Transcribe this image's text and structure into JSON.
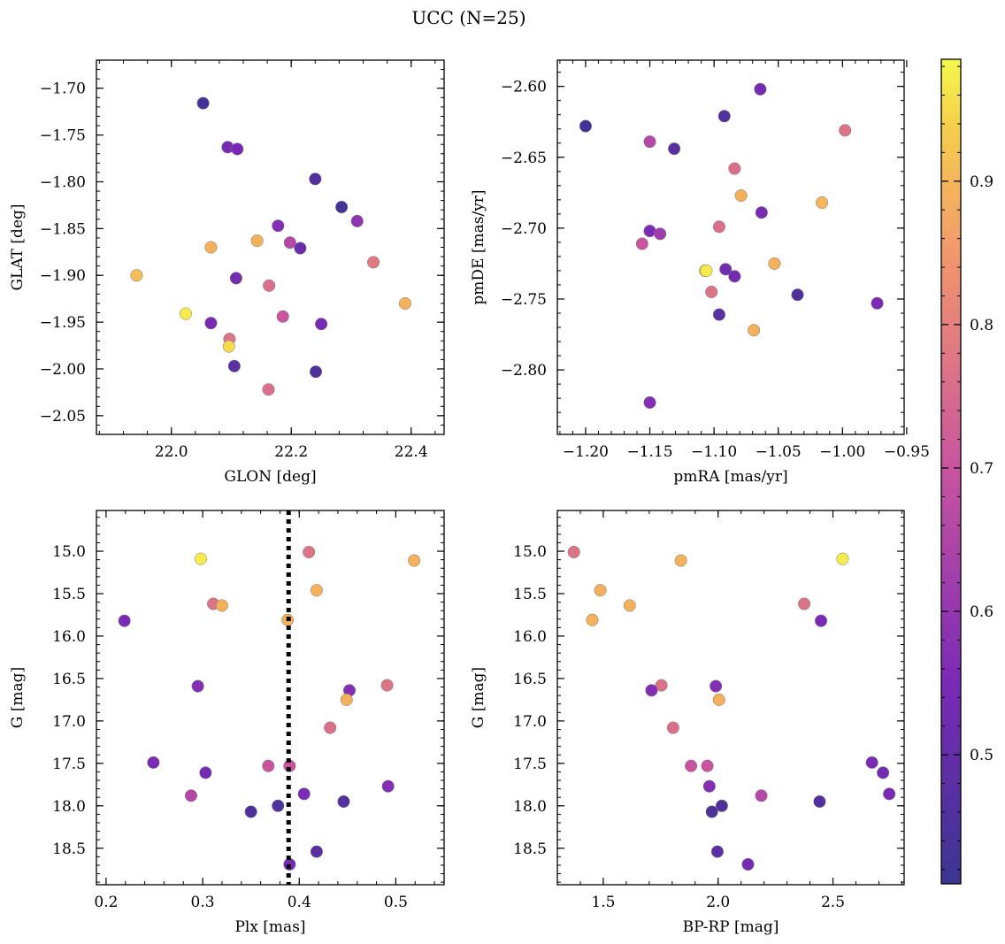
{
  "figure": {
    "title": "UCC (N=25)"
  },
  "colorbar": {
    "min": 0.41,
    "max": 0.985,
    "ticks": [
      0.5,
      0.6,
      0.7,
      0.8,
      0.9
    ],
    "tick_labels": [
      "0.5",
      "0.6",
      "0.7",
      "0.8",
      "0.9"
    ],
    "colormap": "plasma (truncated)"
  },
  "chart_data": [
    {
      "type": "scatter",
      "xlabel": "GLON [deg]",
      "ylabel": "GLAT [deg]",
      "xlim": [
        21.875,
        22.455
      ],
      "ylim": [
        -2.07,
        -1.67
      ],
      "yinvert": false,
      "xticks": [
        22.0,
        22.2,
        22.4
      ],
      "xtick_labels": [
        "22.0",
        "22.2",
        "22.4"
      ],
      "yticks": [
        -1.7,
        -1.75,
        -1.8,
        -1.85,
        -1.9,
        -1.95,
        -2.0,
        -2.05
      ],
      "ytick_labels": [
        "−1.70",
        "−1.75",
        "−1.80",
        "−1.85",
        "−1.90",
        "−1.95",
        "−2.00",
        "−2.05"
      ],
      "points": [
        {
          "x": 22.053,
          "y": -1.716,
          "c": 0.43
        },
        {
          "x": 22.094,
          "y": -1.763,
          "c": 0.54
        },
        {
          "x": 22.11,
          "y": -1.765,
          "c": 0.55
        },
        {
          "x": 22.24,
          "y": -1.797,
          "c": 0.46
        },
        {
          "x": 22.284,
          "y": -1.827,
          "c": 0.42
        },
        {
          "x": 22.178,
          "y": -1.847,
          "c": 0.57
        },
        {
          "x": 22.31,
          "y": -1.842,
          "c": 0.59
        },
        {
          "x": 22.143,
          "y": -1.863,
          "c": 0.89
        },
        {
          "x": 22.198,
          "y": -1.865,
          "c": 0.66
        },
        {
          "x": 22.215,
          "y": -1.871,
          "c": 0.51
        },
        {
          "x": 22.066,
          "y": -1.87,
          "c": 0.89
        },
        {
          "x": 22.337,
          "y": -1.886,
          "c": 0.78
        },
        {
          "x": 21.942,
          "y": -1.9,
          "c": 0.91
        },
        {
          "x": 22.108,
          "y": -1.903,
          "c": 0.53
        },
        {
          "x": 22.163,
          "y": -1.911,
          "c": 0.76
        },
        {
          "x": 22.39,
          "y": -1.93,
          "c": 0.89
        },
        {
          "x": 22.024,
          "y": -1.941,
          "c": 0.97
        },
        {
          "x": 22.186,
          "y": -1.944,
          "c": 0.7
        },
        {
          "x": 22.066,
          "y": -1.951,
          "c": 0.55
        },
        {
          "x": 22.25,
          "y": -1.952,
          "c": 0.54
        },
        {
          "x": 22.097,
          "y": -1.968,
          "c": 0.77
        },
        {
          "x": 22.096,
          "y": -1.976,
          "c": 0.95
        },
        {
          "x": 22.105,
          "y": -1.997,
          "c": 0.48
        },
        {
          "x": 22.241,
          "y": -2.003,
          "c": 0.45
        },
        {
          "x": 22.162,
          "y": -2.022,
          "c": 0.76
        }
      ]
    },
    {
      "type": "scatter",
      "xlabel": "pmRA [mas/yr]",
      "ylabel": "pmDE [mas/yr]",
      "xlim": [
        -1.222,
        -0.952
      ],
      "ylim": [
        -2.8455,
        -2.5815
      ],
      "yinvert": false,
      "xticks": [
        -1.2,
        -1.15,
        -1.1,
        -1.05,
        -1.0,
        -0.95
      ],
      "xtick_labels": [
        "−1.20",
        "−1.15",
        "−1.10",
        "−1.05",
        "−1.00",
        "−0.95"
      ],
      "yticks": [
        -2.6,
        -2.65,
        -2.7,
        -2.75,
        -2.8
      ],
      "ytick_labels": [
        "−2.60",
        "−2.65",
        "−2.70",
        "−2.75",
        "−2.80"
      ],
      "points": [
        {
          "x": -1.064,
          "y": -2.602,
          "c": 0.54
        },
        {
          "x": -1.092,
          "y": -2.621,
          "c": 0.46
        },
        {
          "x": -1.2,
          "y": -2.628,
          "c": 0.43
        },
        {
          "x": -0.998,
          "y": -2.631,
          "c": 0.77
        },
        {
          "x": -1.15,
          "y": -2.639,
          "c": 0.66
        },
        {
          "x": -1.131,
          "y": -2.644,
          "c": 0.48
        },
        {
          "x": -1.084,
          "y": -2.658,
          "c": 0.76
        },
        {
          "x": -1.079,
          "y": -2.677,
          "c": 0.89
        },
        {
          "x": -1.016,
          "y": -2.682,
          "c": 0.9
        },
        {
          "x": -1.063,
          "y": -2.689,
          "c": 0.55
        },
        {
          "x": -1.096,
          "y": -2.699,
          "c": 0.76
        },
        {
          "x": -1.15,
          "y": -2.702,
          "c": 0.55
        },
        {
          "x": -1.142,
          "y": -2.704,
          "c": 0.62
        },
        {
          "x": -1.156,
          "y": -2.711,
          "c": 0.7
        },
        {
          "x": -1.053,
          "y": -2.725,
          "c": 0.89
        },
        {
          "x": -1.091,
          "y": -2.729,
          "c": 0.53
        },
        {
          "x": -1.107,
          "y": -2.73,
          "c": 0.95
        },
        {
          "x": -1.106,
          "y": -2.73,
          "c": 0.97
        },
        {
          "x": -1.084,
          "y": -2.734,
          "c": 0.53
        },
        {
          "x": -1.102,
          "y": -2.745,
          "c": 0.77
        },
        {
          "x": -1.035,
          "y": -2.747,
          "c": 0.45
        },
        {
          "x": -0.973,
          "y": -2.753,
          "c": 0.55
        },
        {
          "x": -1.096,
          "y": -2.761,
          "c": 0.48
        },
        {
          "x": -1.069,
          "y": -2.772,
          "c": 0.89
        },
        {
          "x": -1.15,
          "y": -2.823,
          "c": 0.57
        }
      ]
    },
    {
      "type": "scatter",
      "xlabel": "Plx [mas]",
      "ylabel": "G [mag]",
      "xlim": [
        0.19,
        0.55
      ],
      "ylim": [
        14.52,
        18.93
      ],
      "yinvert": true,
      "xticks": [
        0.2,
        0.3,
        0.4,
        0.5
      ],
      "xtick_labels": [
        "0.2",
        "0.3",
        "0.4",
        "0.5"
      ],
      "yticks": [
        15.0,
        15.5,
        16.0,
        16.5,
        17.0,
        17.5,
        18.0,
        18.5
      ],
      "ytick_labels": [
        "15.0",
        "15.5",
        "16.0",
        "16.5",
        "17.0",
        "17.5",
        "18.0",
        "18.5"
      ],
      "vline": {
        "x": 0.389,
        "style": "dotted",
        "color": "#000000"
      },
      "points": [
        {
          "x": 0.41,
          "y": 15.01,
          "c": 0.77
        },
        {
          "x": 0.298,
          "y": 15.09,
          "c": 0.97
        },
        {
          "x": 0.519,
          "y": 15.11,
          "c": 0.89
        },
        {
          "x": 0.418,
          "y": 15.46,
          "c": 0.89
        },
        {
          "x": 0.311,
          "y": 15.62,
          "c": 0.77
        },
        {
          "x": 0.32,
          "y": 15.64,
          "c": 0.89
        },
        {
          "x": 0.388,
          "y": 15.81,
          "c": 0.89
        },
        {
          "x": 0.219,
          "y": 15.82,
          "c": 0.55
        },
        {
          "x": 0.491,
          "y": 16.58,
          "c": 0.77
        },
        {
          "x": 0.295,
          "y": 16.59,
          "c": 0.57
        },
        {
          "x": 0.452,
          "y": 16.64,
          "c": 0.57
        },
        {
          "x": 0.449,
          "y": 16.75,
          "c": 0.89
        },
        {
          "x": 0.432,
          "y": 17.08,
          "c": 0.76
        },
        {
          "x": 0.249,
          "y": 17.49,
          "c": 0.55
        },
        {
          "x": 0.368,
          "y": 17.53,
          "c": 0.7
        },
        {
          "x": 0.39,
          "y": 17.53,
          "c": 0.7
        },
        {
          "x": 0.303,
          "y": 17.61,
          "c": 0.53
        },
        {
          "x": 0.492,
          "y": 17.77,
          "c": 0.57
        },
        {
          "x": 0.405,
          "y": 17.86,
          "c": 0.55
        },
        {
          "x": 0.288,
          "y": 17.88,
          "c": 0.66
        },
        {
          "x": 0.446,
          "y": 17.95,
          "c": 0.46
        },
        {
          "x": 0.378,
          "y": 18.0,
          "c": 0.45
        },
        {
          "x": 0.35,
          "y": 18.07,
          "c": 0.45
        },
        {
          "x": 0.418,
          "y": 18.54,
          "c": 0.48
        },
        {
          "x": 0.39,
          "y": 18.69,
          "c": 0.54
        }
      ]
    },
    {
      "type": "scatter",
      "xlabel": "BP-RP [mag]",
      "ylabel": "G [mag]",
      "xlim": [
        1.3,
        2.81
      ],
      "ylim": [
        14.52,
        18.93
      ],
      "yinvert": true,
      "xticks": [
        1.5,
        2.0,
        2.5
      ],
      "xtick_labels": [
        "1.5",
        "2.0",
        "2.5"
      ],
      "yticks": [
        15.0,
        15.5,
        16.0,
        16.5,
        17.0,
        17.5,
        18.0,
        18.5
      ],
      "ytick_labels": [
        "15.0",
        "15.5",
        "16.0",
        "16.5",
        "17.0",
        "17.5",
        "18.0",
        "18.5"
      ],
      "points": [
        {
          "x": 1.372,
          "y": 15.01,
          "c": 0.77
        },
        {
          "x": 1.838,
          "y": 15.11,
          "c": 0.89
        },
        {
          "x": 2.542,
          "y": 15.09,
          "c": 0.97
        },
        {
          "x": 1.487,
          "y": 15.46,
          "c": 0.89
        },
        {
          "x": 1.615,
          "y": 15.64,
          "c": 0.89
        },
        {
          "x": 2.375,
          "y": 15.62,
          "c": 0.77
        },
        {
          "x": 1.452,
          "y": 15.81,
          "c": 0.89
        },
        {
          "x": 2.448,
          "y": 15.82,
          "c": 0.55
        },
        {
          "x": 1.753,
          "y": 16.58,
          "c": 0.77
        },
        {
          "x": 1.99,
          "y": 16.59,
          "c": 0.57
        },
        {
          "x": 1.71,
          "y": 16.64,
          "c": 0.57
        },
        {
          "x": 2.004,
          "y": 16.75,
          "c": 0.89
        },
        {
          "x": 1.804,
          "y": 17.08,
          "c": 0.76
        },
        {
          "x": 2.67,
          "y": 17.49,
          "c": 0.55
        },
        {
          "x": 1.882,
          "y": 17.53,
          "c": 0.7
        },
        {
          "x": 1.953,
          "y": 17.53,
          "c": 0.7
        },
        {
          "x": 2.718,
          "y": 17.61,
          "c": 0.53
        },
        {
          "x": 1.962,
          "y": 17.77,
          "c": 0.57
        },
        {
          "x": 2.745,
          "y": 17.86,
          "c": 0.55
        },
        {
          "x": 2.188,
          "y": 17.88,
          "c": 0.66
        },
        {
          "x": 2.442,
          "y": 17.95,
          "c": 0.46
        },
        {
          "x": 2.016,
          "y": 18.0,
          "c": 0.45
        },
        {
          "x": 1.973,
          "y": 18.07,
          "c": 0.45
        },
        {
          "x": 1.997,
          "y": 18.54,
          "c": 0.48
        },
        {
          "x": 2.13,
          "y": 18.69,
          "c": 0.54
        }
      ]
    }
  ]
}
